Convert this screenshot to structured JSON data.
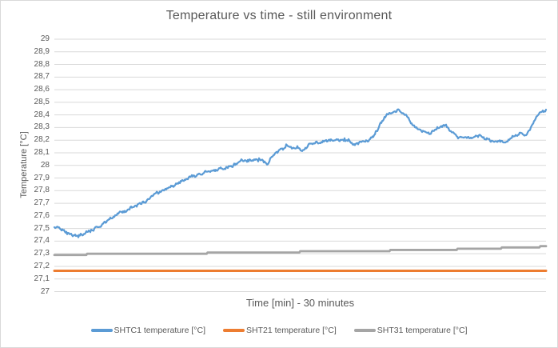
{
  "frame": {
    "background": "#ffffff",
    "border_color": "#d9d9d9"
  },
  "chart_data": {
    "type": "line",
    "title": "Temperature vs time - still environment",
    "xlabel": "Time [min] - 30 minutes",
    "ylabel": "Temperature [°C]",
    "xlim": [
      0,
      30
    ],
    "ylim": [
      27,
      29
    ],
    "y_tick_step": 0.1,
    "y_tick_labels": [
      "29",
      "28,9",
      "28,8",
      "28,7",
      "28,6",
      "28,5",
      "28,4",
      "28,3",
      "28,2",
      "28,1",
      "28",
      "27,9",
      "27,8",
      "27,7",
      "27,6",
      "27,5",
      "27,4",
      "27,3",
      "27,2",
      "27,1",
      "27"
    ],
    "grid": true,
    "gridline_color": "#d9d9d9",
    "text_color": "#595959",
    "legend_position": "bottom",
    "series": [
      {
        "id": "shtc1",
        "name": "SHTC1 temperature [°C]",
        "color": "#5b9bd5",
        "style": "noisy",
        "width": 2.2,
        "noise": 0.015,
        "points": [
          [
            0,
            27.52
          ],
          [
            0.44,
            27.49
          ],
          [
            0.93,
            27.46
          ],
          [
            1.41,
            27.44
          ],
          [
            1.9,
            27.46
          ],
          [
            2.39,
            27.49
          ],
          [
            2.87,
            27.53
          ],
          [
            3.36,
            27.57
          ],
          [
            3.85,
            27.61
          ],
          [
            4.33,
            27.64
          ],
          [
            4.82,
            27.67
          ],
          [
            5.31,
            27.7
          ],
          [
            5.8,
            27.74
          ],
          [
            6.28,
            27.78
          ],
          [
            6.77,
            27.81
          ],
          [
            7.26,
            27.84
          ],
          [
            7.74,
            27.87
          ],
          [
            8.23,
            27.9
          ],
          [
            8.72,
            27.92
          ],
          [
            9.2,
            27.94
          ],
          [
            9.69,
            27.96
          ],
          [
            10.18,
            27.97
          ],
          [
            10.67,
            27.99
          ],
          [
            11.15,
            28.01
          ],
          [
            11.4,
            28.05
          ],
          [
            11.64,
            28.03
          ],
          [
            12.13,
            28.04
          ],
          [
            12.61,
            28.05
          ],
          [
            13.0,
            28.01
          ],
          [
            13.34,
            28.08
          ],
          [
            13.83,
            28.13
          ],
          [
            14.32,
            28.15
          ],
          [
            14.8,
            28.14
          ],
          [
            15.19,
            28.12
          ],
          [
            15.54,
            28.16
          ],
          [
            16.02,
            28.18
          ],
          [
            16.51,
            28.19
          ],
          [
            17.0,
            28.2
          ],
          [
            17.48,
            28.2
          ],
          [
            17.97,
            28.19
          ],
          [
            18.21,
            28.17
          ],
          [
            18.7,
            28.19
          ],
          [
            19.19,
            28.2
          ],
          [
            19.53,
            28.24
          ],
          [
            19.77,
            28.3
          ],
          [
            20.02,
            28.36
          ],
          [
            20.31,
            28.4
          ],
          [
            20.65,
            28.42
          ],
          [
            20.99,
            28.43
          ],
          [
            21.28,
            28.41
          ],
          [
            21.53,
            28.38
          ],
          [
            21.77,
            28.34
          ],
          [
            22.11,
            28.3
          ],
          [
            22.5,
            28.27
          ],
          [
            22.89,
            28.25
          ],
          [
            23.18,
            28.27
          ],
          [
            23.47,
            28.3
          ],
          [
            23.77,
            28.32
          ],
          [
            24.06,
            28.29
          ],
          [
            24.35,
            28.26
          ],
          [
            24.64,
            28.23
          ],
          [
            25.03,
            28.22
          ],
          [
            25.52,
            28.21
          ],
          [
            25.91,
            28.24
          ],
          [
            26.25,
            28.21
          ],
          [
            26.74,
            28.19
          ],
          [
            27.08,
            28.2
          ],
          [
            27.47,
            28.18
          ],
          [
            27.86,
            28.21
          ],
          [
            28.2,
            28.25
          ],
          [
            28.49,
            28.26
          ],
          [
            28.73,
            28.22
          ],
          [
            28.93,
            28.27
          ],
          [
            29.17,
            28.32
          ],
          [
            29.42,
            28.38
          ],
          [
            29.66,
            28.42
          ],
          [
            30,
            28.44
          ]
        ]
      },
      {
        "id": "sht21",
        "name": "SHT21 temperature [°C]",
        "color": "#ed7d31",
        "style": "flat",
        "width": 3,
        "points": [
          [
            0,
            27.165
          ],
          [
            30,
            27.165
          ]
        ]
      },
      {
        "id": "sht31",
        "name": "SHT31 temperature [°C]",
        "color": "#a5a5a5",
        "style": "stepped",
        "width": 2.8,
        "quantize": 0.01,
        "points": [
          [
            0,
            27.298
          ],
          [
            2,
            27.3
          ],
          [
            4,
            27.302
          ],
          [
            6,
            27.305
          ],
          [
            8,
            27.308
          ],
          [
            10,
            27.311
          ],
          [
            12,
            27.314
          ],
          [
            14,
            27.318
          ],
          [
            16,
            27.322
          ],
          [
            18,
            27.325
          ],
          [
            20,
            27.329
          ],
          [
            22,
            27.333
          ],
          [
            24,
            27.338
          ],
          [
            25.5,
            27.343
          ],
          [
            27,
            27.349
          ],
          [
            28.5,
            27.354
          ],
          [
            29.5,
            27.359
          ],
          [
            30,
            27.363
          ]
        ]
      }
    ]
  }
}
